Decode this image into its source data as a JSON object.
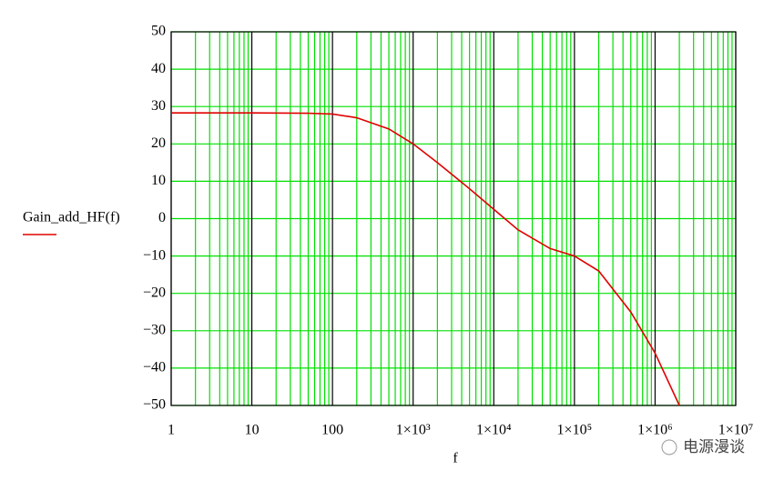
{
  "chart_data": {
    "type": "line",
    "y_label": "Gain_add_HF(f)",
    "x_label": "f",
    "watermark": "电源漫谈",
    "x_log": true,
    "grid": true,
    "grid_color": "#00e000",
    "major_grid_color": "#000000",
    "xlim": [
      1,
      10000000
    ],
    "xticks": [
      1,
      10,
      100,
      {
        "value": 1000,
        "label": "1×10³"
      },
      {
        "value": 10000,
        "label": "1×10⁴"
      },
      {
        "value": 100000,
        "label": "1×10⁵"
      },
      {
        "value": 1000000,
        "label": "1×10⁶"
      },
      {
        "value": 10000000,
        "label": "1×10⁷"
      }
    ],
    "ylim": [
      -50,
      50
    ],
    "yticks": [
      50,
      40,
      30,
      20,
      10,
      0,
      {
        "value": -10,
        "label": "−10"
      },
      {
        "value": -20,
        "label": "−20"
      },
      {
        "value": -30,
        "label": "−30"
      },
      {
        "value": -40,
        "label": "−40"
      },
      {
        "value": -50,
        "label": "−50"
      }
    ],
    "series": [
      {
        "name": "Gain_add_HF(f)",
        "color": "#e00000",
        "x": [
          1,
          10,
          50,
          100,
          200,
          500,
          1000,
          2000,
          5000,
          10000,
          20000,
          50000,
          100000,
          200000,
          500000,
          1000000,
          2000000
        ],
        "values": [
          28.3,
          28.3,
          28.2,
          28,
          27,
          24,
          20,
          15,
          8,
          2.5,
          -3,
          -8,
          -10,
          -14,
          -25,
          -36,
          -50
        ]
      }
    ]
  }
}
